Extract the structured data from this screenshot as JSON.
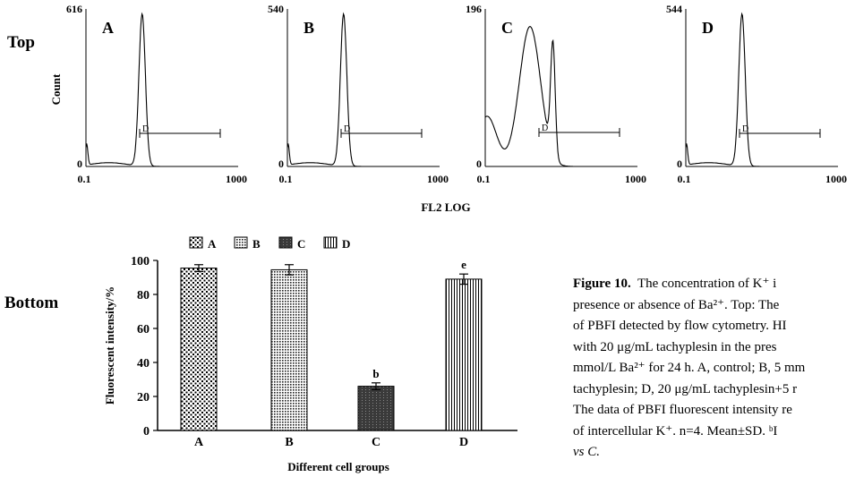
{
  "figure": {
    "top_label": "Top",
    "bottom_label": "Bottom",
    "histogram_xlabel": "FL2 LOG",
    "histogram_ylabel": "Count"
  },
  "chart_data": [
    {
      "type": "histogram",
      "panel": "A",
      "ymax_label": "616",
      "ymin_label": "0",
      "x_scale": "log",
      "xlim": [
        0.1,
        1000
      ],
      "xtick_labels": [
        "0.1",
        "1000"
      ],
      "gate_label": "D",
      "peak_x": 3.0
    },
    {
      "type": "histogram",
      "panel": "B",
      "ymax_label": "540",
      "ymin_label": "0",
      "x_scale": "log",
      "xlim": [
        0.1,
        1000
      ],
      "xtick_labels": [
        "0.1",
        "1000"
      ],
      "gate_label": "D",
      "peak_x": 3.0
    },
    {
      "type": "histogram",
      "panel": "C",
      "ymax_label": "196",
      "ymin_label": "0",
      "x_scale": "log",
      "xlim": [
        0.1,
        1000
      ],
      "xtick_labels": [
        "0.1",
        "1000"
      ],
      "gate_label": "D",
      "peaks_x": [
        1.5,
        6.0
      ]
    },
    {
      "type": "histogram",
      "panel": "D",
      "ymax_label": "544",
      "ymin_label": "0",
      "x_scale": "log",
      "xlim": [
        0.1,
        1000
      ],
      "xtick_labels": [
        "0.1",
        "1000"
      ],
      "gate_label": "D",
      "peak_x": 3.0
    },
    {
      "type": "bar",
      "categories": [
        "A",
        "B",
        "C",
        "D"
      ],
      "legend": [
        "A",
        "B",
        "C",
        "D"
      ],
      "values": [
        95.5,
        94.5,
        26,
        89
      ],
      "errors": [
        2,
        3,
        2,
        3
      ],
      "annotations": [
        "",
        "",
        "b",
        "e"
      ],
      "ylabel": "Fluorescent intensity/%",
      "xlabel": "Different cell groups",
      "ylim": [
        0,
        100
      ],
      "yticks": [
        0,
        20,
        40,
        60,
        80,
        100
      ],
      "legend_position": "top"
    }
  ],
  "caption": {
    "label": "Figure 10.",
    "line1_rest": "  The concentration of K⁺ i",
    "line2": "presence or absence of Ba²⁺.  Top: The",
    "line3": "of PBFI detected by flow cytometry.  HI",
    "line4": "with 20 μg/mL tachyplesin in the pres",
    "line5": "mmol/L Ba²⁺ for 24 h.  A, control; B, 5 mm",
    "line6": "tachyplesin; D, 20 μg/mL tachyplesin+5 r",
    "line7": "The data of PBFI fluorescent intensity re",
    "line8": "of intercellular K⁺.  n=4. Mean±SD.  ᵇI",
    "line9": "vs C."
  }
}
